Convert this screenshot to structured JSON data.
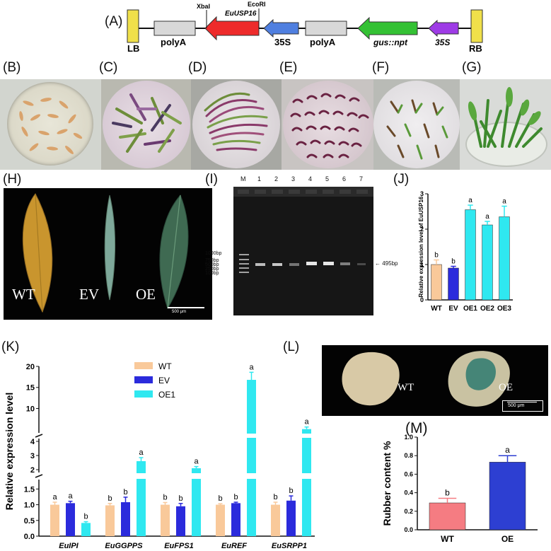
{
  "panels": {
    "A": "(A)",
    "B": "(B)",
    "C": "(C)",
    "D": "(D)",
    "E": "(E)",
    "F": "(F)",
    "G": "(G)",
    "H": "(H)",
    "I": "(I)",
    "J": "(J)",
    "K": "(K)",
    "L": "(L)",
    "M": "(M)"
  },
  "construct": {
    "lb": "LB",
    "rb": "RB",
    "polyA_1": "polyA",
    "gene": "EuUSP16",
    "xbai": "XbaI",
    "ecori": "EcoRI",
    "promoter_1": "35S",
    "polyA_2": "polyA",
    "reporter": "gus::npt",
    "promoter_2": "35S"
  },
  "panel_h": {
    "wt": "WT",
    "ev": "EV",
    "oe": "OE",
    "scale": "500 μm"
  },
  "panel_i": {
    "lanes": [
      "M",
      "1",
      "2",
      "3",
      "4",
      "5",
      "6",
      "7"
    ],
    "markers": [
      "1000bp",
      "750bp",
      "500bp",
      "250bp",
      "100bp"
    ],
    "band": "495bp"
  },
  "panel_l": {
    "wt": "WT",
    "oe": "OE",
    "scale": "500 μm"
  },
  "chart_data": [
    {
      "id": "J",
      "type": "bar",
      "categories": [
        "WT",
        "EV",
        "OE1",
        "OE2",
        "OE3"
      ],
      "values": [
        1.0,
        0.9,
        2.55,
        2.12,
        2.35
      ],
      "errors": [
        0.13,
        0.05,
        0.13,
        0.1,
        0.3
      ],
      "letters": [
        "b",
        "b",
        "a",
        "a",
        "a"
      ],
      "colors": [
        "#f9c99a",
        "#2b2bdc",
        "#2fe8f0",
        "#2fe8f0",
        "#2fe8f0"
      ],
      "ylabel": "Relative expression level of  EuUSP16",
      "ylim": [
        0,
        3
      ],
      "yticks": [
        "0",
        "1",
        "2",
        "3"
      ]
    },
    {
      "id": "K",
      "type": "bar",
      "categories": [
        "EuIPI",
        "EuGGPPS",
        "EuFPS1",
        "EuREF",
        "EuSRPP1"
      ],
      "series": [
        {
          "name": "WT",
          "color": "#f9c99a",
          "values": [
            1.0,
            0.98,
            1.0,
            1.0,
            1.0
          ],
          "errors": [
            0.08,
            0.06,
            0.07,
            0.03,
            0.08
          ],
          "letters": [
            "a",
            "b",
            "b",
            "b",
            "b"
          ]
        },
        {
          "name": "EV",
          "color": "#2b2bdc",
          "values": [
            1.05,
            1.08,
            0.95,
            1.05,
            1.13
          ],
          "errors": [
            0.06,
            0.16,
            0.09,
            0.03,
            0.15
          ],
          "letters": [
            "a",
            "b",
            "b",
            "b",
            "b"
          ]
        },
        {
          "name": "OE1",
          "color": "#2fe8f0",
          "values": [
            0.42,
            2.6,
            2.1,
            16.8,
            5.1
          ],
          "errors": [
            0.04,
            0.25,
            0.12,
            1.8,
            0.5
          ],
          "letters": [
            "b",
            "a",
            "a",
            "a",
            "a"
          ]
        }
      ],
      "ylabel": "Relative expression level",
      "yticks_bottom": [
        "0.0",
        "0.5",
        "1.0",
        "1.5"
      ],
      "yticks_middle": [
        "2",
        "3",
        "4"
      ],
      "yticks_top": [
        "10",
        "15",
        "20"
      ],
      "ylim_segments": [
        [
          0,
          1.8
        ],
        [
          1.8,
          4.2
        ],
        [
          4.2,
          20
        ]
      ]
    },
    {
      "id": "M",
      "type": "bar",
      "categories": [
        "WT",
        "OE"
      ],
      "values": [
        0.29,
        0.73
      ],
      "errors": [
        0.05,
        0.07
      ],
      "letters": [
        "b",
        "a"
      ],
      "colors": [
        "#f57c82",
        "#2d3fd2"
      ],
      "ylabel": "Rubber content %",
      "ylim": [
        0,
        1.0
      ],
      "yticks": [
        "0.0",
        "0.2",
        "0.4",
        "0.6",
        "0.8",
        "1.0"
      ]
    }
  ]
}
